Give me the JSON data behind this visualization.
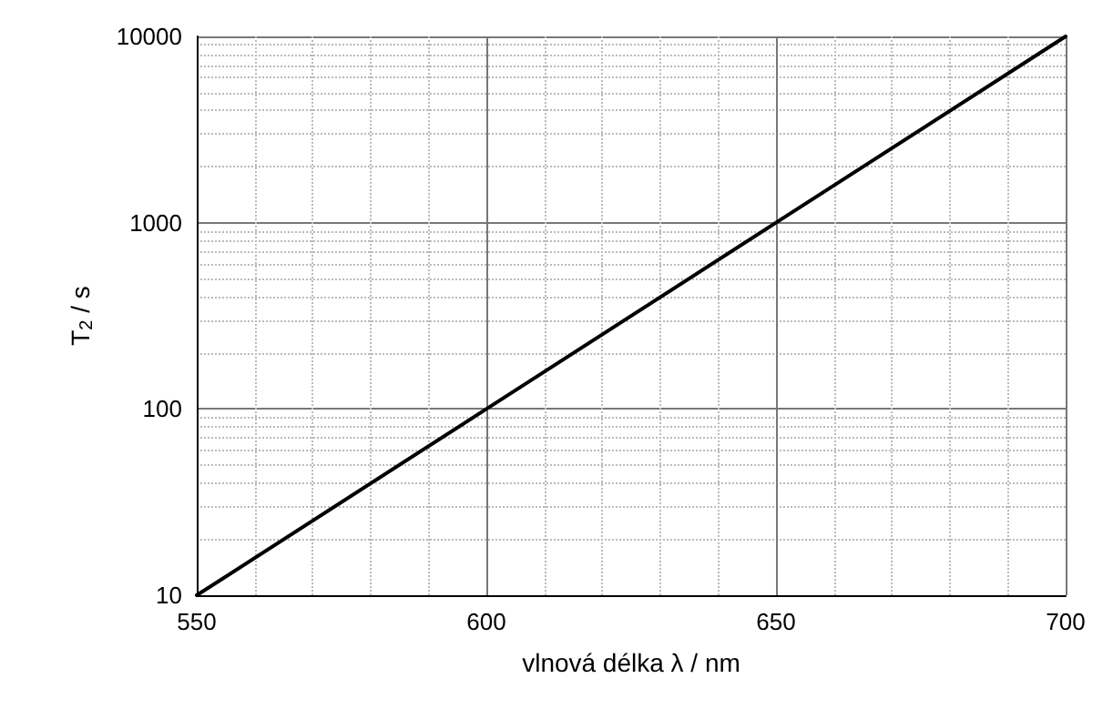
{
  "chart_data": {
    "type": "line",
    "xlabel": "vlnová délka λ / nm",
    "ylabel": "T$_{2}$ / s",
    "x": [
      550,
      600,
      650,
      700
    ],
    "series": [
      {
        "color": "#000000",
        "values": [
          10,
          100,
          1000,
          10000
        ]
      }
    ],
    "xlim": [
      550,
      700
    ],
    "xticks": [
      550,
      600,
      650,
      700
    ],
    "ylim": [
      10,
      10000
    ],
    "yticks": [
      10,
      100,
      1000,
      10000
    ],
    "log": "y",
    "grid": true,
    "marker": "none",
    "line_style": "solid"
  }
}
